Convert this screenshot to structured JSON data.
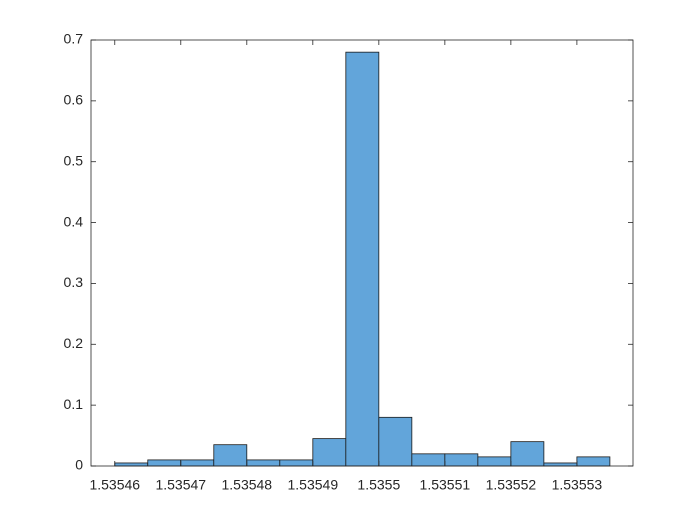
{
  "chart_data": {
    "type": "histogram",
    "bins": [
      1.53546,
      1.535465,
      1.53547,
      1.535475,
      1.53548,
      1.535485,
      1.53549,
      1.535495,
      1.5355,
      1.535505,
      1.53551,
      1.535515,
      1.53552,
      1.535525,
      1.53553,
      1.535535
    ],
    "values": [
      0.005,
      0.01,
      0.01,
      0.035,
      0.01,
      0.01,
      0.045,
      0.68,
      0.08,
      0.02,
      0.02,
      0.015,
      0.04,
      0.005,
      0.015
    ],
    "color": "#62a5da",
    "xlim": [
      1.5354564,
      1.5355385
    ],
    "xticks": [
      1.53546,
      1.53547,
      1.53548,
      1.53549,
      1.5355,
      1.53551,
      1.53552,
      1.53553
    ],
    "ylim": [
      0,
      0.7
    ],
    "yticks": [
      0,
      0.1,
      0.2,
      0.3,
      0.4,
      0.5,
      0.6,
      0.7
    ]
  }
}
